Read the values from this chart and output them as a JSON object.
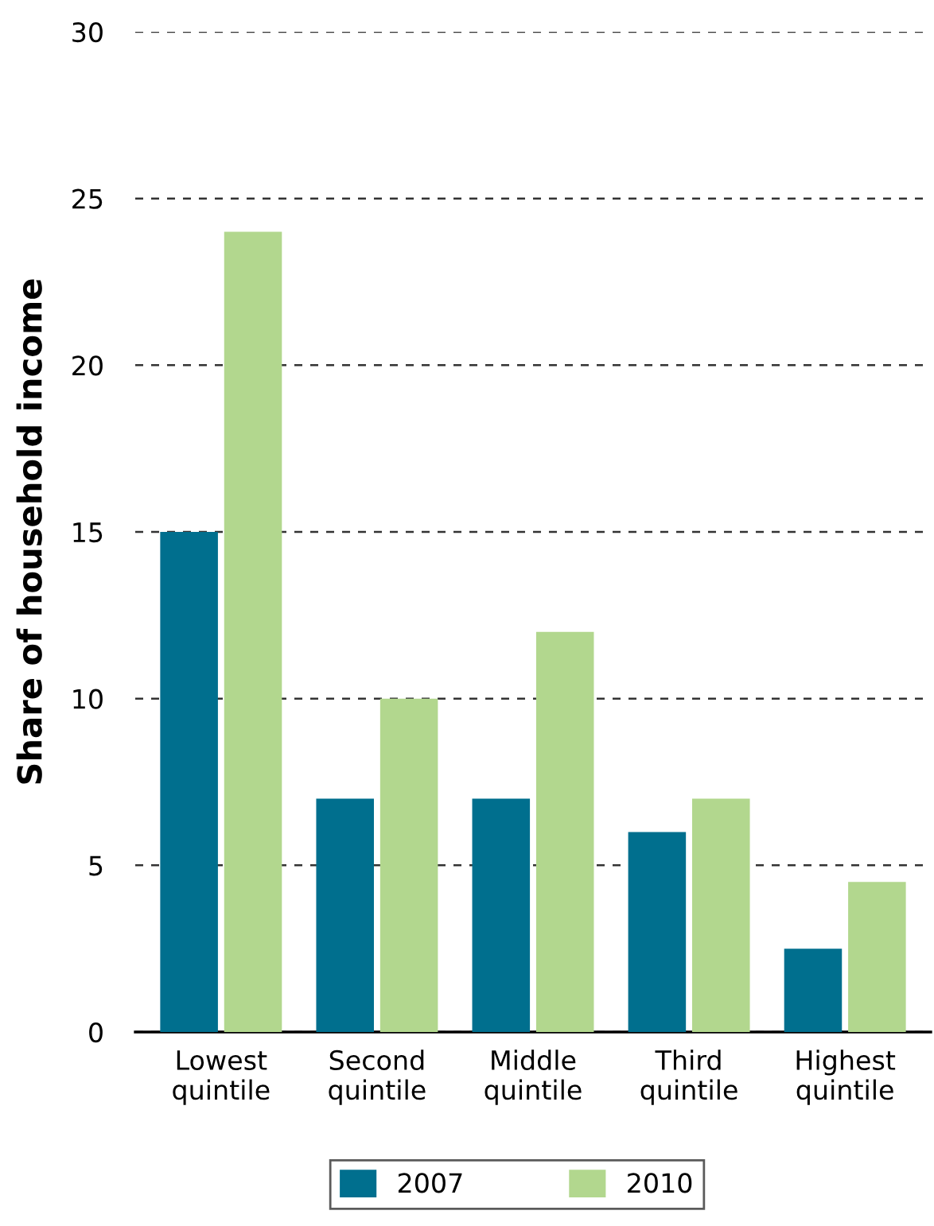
{
  "chart_data": {
    "type": "bar",
    "ylabel": "Share of household income",
    "categories": [
      "Lowest\nquintile",
      "Second\nquintile",
      "Middle\nquintile",
      "Third\nquintile",
      "Highest\nquintile"
    ],
    "series": [
      {
        "name": "2007",
        "color": "#006f8e",
        "values": [
          15,
          7,
          7,
          6,
          2.5
        ]
      },
      {
        "name": "2010",
        "color": "#b2d78e",
        "values": [
          24,
          10,
          12,
          7,
          4.5
        ]
      }
    ],
    "ylim": [
      0,
      30
    ],
    "yticks": [
      0,
      5,
      10,
      15,
      20,
      25,
      30
    ],
    "grid": "y",
    "legend": "bottom"
  }
}
